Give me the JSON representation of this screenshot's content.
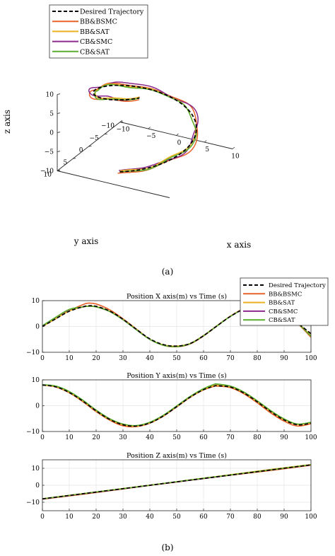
{
  "captions": {
    "a": "(a)",
    "b": "(b)"
  },
  "colors": {
    "desired": "#000000",
    "bb_bsmc": "#E8622A",
    "bb_sat": "#EDB120",
    "cb_smc": "#8B2A8B",
    "cb_sat": "#5AAE2E",
    "grid": "#e4e4e4",
    "axis": "#262626"
  },
  "legend_entries": [
    "Desired Trajectory",
    "BB&BSMC",
    "BB&SAT",
    "CB&SMC",
    "CB&SAT"
  ],
  "chart_data": [
    {
      "type": "line",
      "panel": "a",
      "projection": "3d",
      "title": "",
      "xlabel": "x axis",
      "ylabel": "y axis",
      "zlabel": "z axis",
      "xlim": [
        -10,
        10
      ],
      "ylim": [
        -10,
        10
      ],
      "zlim": [
        -10,
        10
      ],
      "x_ticks": [
        "−10",
        "−5",
        "0",
        "5",
        "10"
      ],
      "y_ticks": [
        "−10",
        "−5",
        "0",
        "5",
        "10"
      ],
      "z_ticks": [
        "−10",
        "−5",
        "0",
        "5",
        "10"
      ],
      "trajectory": {
        "shape": "helix",
        "radius": 8,
        "z_start": -8,
        "z_end": 12,
        "t_range": [
          0,
          100
        ],
        "period_s": 94
      },
      "series": [
        {
          "name": "Desired Trajectory",
          "style": "dashed"
        },
        {
          "name": "BB&BSMC",
          "style": "solid"
        },
        {
          "name": "BB&SAT",
          "style": "solid"
        },
        {
          "name": "CB&SMC",
          "style": "solid"
        },
        {
          "name": "CB&SAT",
          "style": "solid"
        }
      ],
      "legend": [
        "Desired Trajectory",
        "BB&BSMC",
        "BB&SAT",
        "CB&SMC",
        "CB&SAT"
      ],
      "legend_position": "top-left",
      "grid": false
    },
    {
      "type": "line",
      "panel": "b1",
      "title": "Position X axis(m) vs Time (s)",
      "xlabel": "",
      "ylabel": "",
      "xlim": [
        0,
        100
      ],
      "ylim": [
        -10,
        10
      ],
      "x_ticks": [
        "0",
        "10",
        "20",
        "30",
        "40",
        "50",
        "60",
        "70",
        "80",
        "90",
        "100"
      ],
      "y_ticks": [
        "−10",
        "0",
        "10"
      ],
      "x": [
        0,
        5,
        10,
        15,
        17,
        20,
        25,
        30,
        35,
        40,
        45,
        50,
        55,
        60,
        65,
        70,
        75,
        80,
        85,
        90,
        95,
        100
      ],
      "series": [
        {
          "name": "Desired Trajectory",
          "values": [
            0.0,
            3.0,
            5.9,
            7.6,
            8.0,
            7.8,
            6.0,
            2.8,
            -1.1,
            -4.8,
            -7.0,
            -7.6,
            -6.6,
            -3.6,
            0.2,
            3.9,
            6.7,
            7.9,
            7.4,
            4.9,
            1.3,
            -2.8
          ]
        },
        {
          "name": "BB&BSMC",
          "values": [
            0.0,
            3.0,
            6.1,
            8.4,
            9.0,
            8.7,
            6.5,
            3.0,
            -1.0,
            -4.9,
            -7.3,
            -7.9,
            -6.8,
            -3.7,
            0.2,
            4.0,
            6.9,
            8.1,
            7.6,
            5.0,
            1.2,
            -4.2
          ]
        },
        {
          "name": "BB&SAT",
          "values": [
            0.0,
            3.1,
            6.0,
            7.6,
            7.9,
            7.7,
            5.9,
            2.7,
            -1.2,
            -4.9,
            -7.1,
            -7.6,
            -6.6,
            -3.5,
            0.3,
            4.0,
            6.8,
            8.0,
            7.5,
            5.0,
            1.4,
            -3.5
          ]
        },
        {
          "name": "CB&SMC",
          "values": [
            0.2,
            3.4,
            6.4,
            7.5,
            7.8,
            7.6,
            5.8,
            2.6,
            -1.3,
            -5.0,
            -7.2,
            -7.7,
            -6.6,
            -3.5,
            0.3,
            4.0,
            6.8,
            8.0,
            7.5,
            5.0,
            1.4,
            -3.5
          ]
        },
        {
          "name": "CB&SAT",
          "values": [
            0.3,
            3.6,
            6.6,
            7.6,
            7.8,
            7.6,
            5.8,
            2.6,
            -1.3,
            -5.0,
            -7.3,
            -7.8,
            -6.7,
            -3.6,
            0.2,
            3.9,
            6.7,
            7.9,
            7.4,
            4.9,
            1.3,
            -3.8
          ]
        }
      ],
      "legend": [
        "Desired Trajectory",
        "BB&BSMC",
        "BB&SAT",
        "CB&SMC",
        "CB&SAT"
      ],
      "legend_position": "top-right",
      "grid": true
    },
    {
      "type": "line",
      "panel": "b2",
      "title": "Position Y axis(m) vs Time (s)",
      "xlabel": "",
      "ylabel": "",
      "xlim": [
        0,
        100
      ],
      "ylim": [
        -10,
        10
      ],
      "x_ticks": [
        "0",
        "10",
        "20",
        "30",
        "40",
        "50",
        "60",
        "70",
        "80",
        "90",
        "100"
      ],
      "y_ticks": [
        "−10",
        "0",
        "10"
      ],
      "x": [
        0,
        5,
        10,
        15,
        20,
        25,
        30,
        35,
        40,
        45,
        50,
        55,
        60,
        64,
        65,
        70,
        75,
        80,
        85,
        90,
        95,
        100
      ],
      "series": [
        {
          "name": "Desired Trajectory",
          "values": [
            8.0,
            7.3,
            5.1,
            1.8,
            -2.0,
            -5.3,
            -7.4,
            -7.9,
            -6.7,
            -4.0,
            -0.4,
            3.3,
            6.2,
            7.6,
            7.7,
            7.2,
            4.9,
            1.5,
            -2.3,
            -5.5,
            -7.4,
            -6.8
          ]
        },
        {
          "name": "BB&BSMC",
          "values": [
            8.0,
            7.2,
            5.0,
            1.6,
            -2.3,
            -5.6,
            -7.8,
            -8.1,
            -6.8,
            -4.1,
            -0.5,
            3.2,
            6.1,
            7.5,
            7.6,
            7.0,
            4.6,
            1.1,
            -2.8,
            -6.0,
            -7.9,
            -7.0
          ]
        },
        {
          "name": "BB&SAT",
          "values": [
            8.0,
            7.4,
            5.2,
            1.9,
            -2.0,
            -5.3,
            -7.4,
            -7.9,
            -6.6,
            -3.9,
            -0.3,
            3.4,
            6.3,
            7.8,
            7.9,
            7.3,
            5.0,
            1.6,
            -2.2,
            -5.4,
            -7.3,
            -6.6
          ]
        },
        {
          "name": "CB&SMC",
          "values": [
            8.1,
            7.5,
            5.4,
            2.0,
            -1.9,
            -5.2,
            -7.3,
            -7.8,
            -6.5,
            -3.8,
            -0.2,
            3.5,
            6.4,
            7.9,
            8.0,
            7.4,
            5.1,
            1.7,
            -2.1,
            -5.3,
            -7.2,
            -6.5
          ]
        },
        {
          "name": "CB&SAT",
          "values": [
            8.1,
            7.6,
            5.5,
            2.2,
            -1.7,
            -5.0,
            -7.1,
            -7.7,
            -6.4,
            -3.7,
            -0.1,
            3.6,
            6.6,
            8.3,
            8.4,
            7.6,
            5.3,
            1.9,
            -1.9,
            -5.1,
            -7.1,
            -6.4
          ]
        }
      ],
      "grid": true
    },
    {
      "type": "line",
      "panel": "b3",
      "title": "Position Z axis(m) vs Time (s)",
      "xlabel": "",
      "ylabel": "",
      "xlim": [
        0,
        100
      ],
      "ylim": [
        -15,
        15
      ],
      "x_ticks": [
        "0",
        "10",
        "20",
        "30",
        "40",
        "50",
        "60",
        "70",
        "80",
        "90",
        "100"
      ],
      "y_ticks": [
        "−10",
        "0",
        "10"
      ],
      "x": [
        0,
        10,
        20,
        30,
        40,
        50,
        60,
        70,
        80,
        90,
        100
      ],
      "series": [
        {
          "name": "Desired Trajectory",
          "values": [
            -8,
            -6,
            -4,
            -2,
            0,
            2,
            4,
            6,
            8,
            10,
            12
          ]
        },
        {
          "name": "BB&BSMC",
          "values": [
            -8.2,
            -6.3,
            -4.3,
            -2.2,
            -0.1,
            1.9,
            3.9,
            5.9,
            7.8,
            9.7,
            11.8
          ]
        },
        {
          "name": "BB&SAT",
          "values": [
            -7.9,
            -5.9,
            -3.9,
            -1.9,
            0.1,
            2.1,
            4.2,
            6.2,
            8.3,
            10.3,
            12.2
          ]
        },
        {
          "name": "CB&SMC",
          "values": [
            -8.1,
            -6.1,
            -4.1,
            -2.1,
            0.0,
            2.0,
            4.0,
            6.1,
            8.1,
            10.1,
            12.0
          ]
        },
        {
          "name": "CB&SAT",
          "values": [
            -8.0,
            -6.0,
            -4.0,
            -2.0,
            0.0,
            2.1,
            4.1,
            6.1,
            8.1,
            10.1,
            12.1
          ]
        }
      ],
      "grid": true
    }
  ]
}
